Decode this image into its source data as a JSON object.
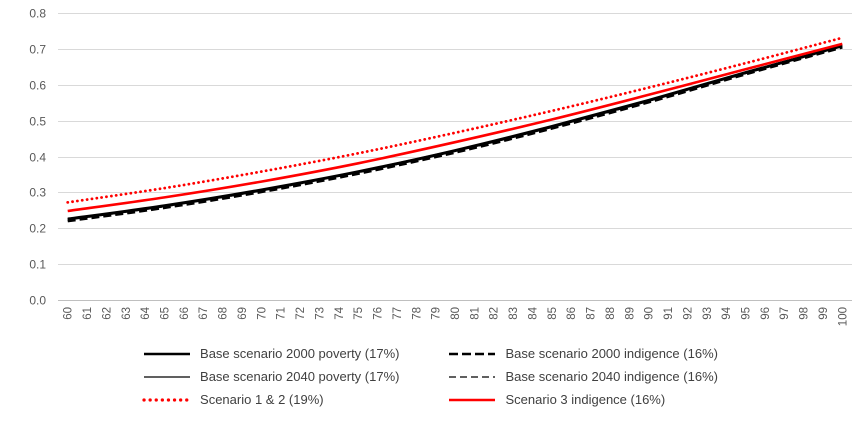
{
  "chart_data": {
    "type": "line",
    "title": "",
    "xlabel": "",
    "ylabel": "",
    "grid": true,
    "legend_position": "bottom",
    "ylim": [
      0.0,
      0.8
    ],
    "y_ticks": [
      "0.0",
      "0.1",
      "0.2",
      "0.3",
      "0.4",
      "0.5",
      "0.6",
      "0.7",
      "0.8"
    ],
    "x_ticks": [
      60,
      61,
      62,
      63,
      64,
      65,
      66,
      67,
      68,
      69,
      70,
      71,
      72,
      73,
      74,
      75,
      76,
      77,
      78,
      79,
      80,
      81,
      82,
      83,
      84,
      85,
      86,
      87,
      88,
      89,
      90,
      91,
      92,
      93,
      94,
      95,
      96,
      97,
      98,
      99,
      100
    ],
    "x_anchor": [
      60,
      65,
      70,
      75,
      80,
      85,
      90,
      95,
      100
    ],
    "colors": {
      "black": "#000000",
      "red": "#FF0000",
      "gridline": "#D9D9D9",
      "axis_line": "#BFBFBF",
      "tick_text": "#595959"
    },
    "series": [
      {
        "name": "Base scenario 2000 poverty (17%)",
        "color": "#000000",
        "dash": "solid",
        "width": 2.6,
        "values": [
          0.225,
          0.262,
          0.306,
          0.357,
          0.416,
          0.483,
          0.556,
          0.633,
          0.708
        ]
      },
      {
        "name": "Base scenario 2000 indigence (16%)",
        "color": "#000000",
        "dash": "dash",
        "width": 2.6,
        "values": [
          0.22,
          0.257,
          0.301,
          0.352,
          0.411,
          0.478,
          0.551,
          0.629,
          0.704
        ]
      },
      {
        "name": "Base scenario 2040 poverty (17%)",
        "color": "#000000",
        "dash": "solid",
        "width": 1.3,
        "values": [
          0.228,
          0.265,
          0.309,
          0.36,
          0.419,
          0.486,
          0.559,
          0.636,
          0.71
        ]
      },
      {
        "name": "Base scenario 2040 indigence (16%)",
        "color": "#000000",
        "dash": "dash",
        "width": 1.3,
        "values": [
          0.223,
          0.26,
          0.304,
          0.355,
          0.414,
          0.481,
          0.554,
          0.631,
          0.706
        ]
      },
      {
        "name": "Scenario 1 & 2 (19%)",
        "color": "#FF0000",
        "dash": "dot",
        "width": 2.8,
        "values": [
          0.272,
          0.312,
          0.358,
          0.409,
          0.466,
          0.527,
          0.592,
          0.66,
          0.731
        ]
      },
      {
        "name": "Scenario 3 indigence (16%)",
        "color": "#FF0000",
        "dash": "solid",
        "width": 2.6,
        "values": [
          0.248,
          0.286,
          0.33,
          0.381,
          0.44,
          0.503,
          0.572,
          0.643,
          0.714
        ]
      }
    ]
  }
}
